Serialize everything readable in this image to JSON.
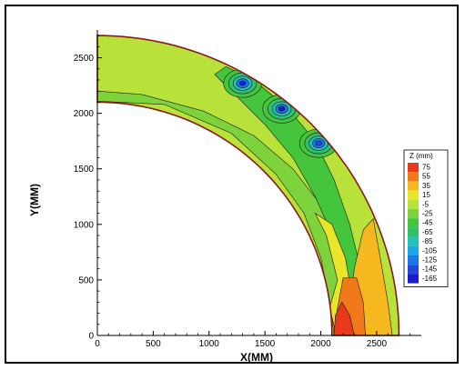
{
  "chart_data": {
    "type": "heatmap",
    "xlabel": "X(MM)",
    "ylabel": "Y(MM)",
    "xlim": [
      0,
      2900
    ],
    "ylim": [
      0,
      2750
    ],
    "x_ticks": [
      0,
      500,
      1000,
      1500,
      2000,
      2500
    ],
    "y_ticks": [
      0,
      500,
      1000,
      1500,
      2000,
      2500
    ],
    "annulus": {
      "inner_radius": 2100,
      "outer_radius": 2700,
      "theta_range_deg": [
        0,
        90
      ]
    },
    "legend": {
      "title": "Z (mm)",
      "levels": [
        75,
        55,
        35,
        15,
        -5,
        -25,
        -45,
        -65,
        -85,
        -105,
        -125,
        -145,
        -165
      ],
      "colors": [
        "#e8391c",
        "#f07a1a",
        "#f5b81e",
        "#e8e52a",
        "#b8e23a",
        "#7ed23c",
        "#45c53c",
        "#2fc06b",
        "#22c4b8",
        "#1aa6e8",
        "#1f74e8",
        "#2447d8",
        "#1c1ccf"
      ]
    },
    "regions": [
      {
        "name": "annulus-base",
        "level": -5
      },
      {
        "name": "inner-band-zone",
        "level": -25
      },
      {
        "name": "mid-band-zone",
        "level": -45
      },
      {
        "name": "inner-edge-strip",
        "level": 15
      },
      {
        "name": "bottom-yellow-zone",
        "level": 35
      },
      {
        "name": "bottom-orange-zone",
        "level": 55
      },
      {
        "name": "bottom-red-zone",
        "level": 75
      }
    ],
    "depressions": [
      {
        "name": "dep-1",
        "x": 1300,
        "y": 2270,
        "levels": [
          -45,
          -65,
          -85,
          -125,
          -165
        ]
      },
      {
        "name": "dep-2",
        "x": 1650,
        "y": 2040,
        "levels": [
          -45,
          -65,
          -85,
          -125,
          -165
        ]
      },
      {
        "name": "dep-3",
        "x": 1980,
        "y": 1730,
        "levels": [
          -45,
          -65,
          -85,
          -125,
          -145
        ]
      }
    ]
  }
}
